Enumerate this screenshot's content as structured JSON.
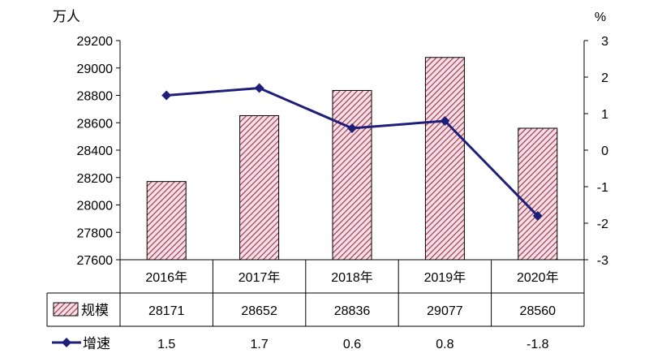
{
  "chart_data": {
    "type": "bar",
    "categories": [
      "2016年",
      "2017年",
      "2018年",
      "2019年",
      "2020年"
    ],
    "left_axis": {
      "unit": "万人",
      "ylim": [
        27600,
        29200
      ],
      "ticks": [
        27600,
        27800,
        28000,
        28200,
        28400,
        28600,
        28800,
        29000,
        29200
      ]
    },
    "right_axis": {
      "unit": "%",
      "ylim": [
        -3,
        3
      ],
      "ticks": [
        -3,
        -2,
        -1,
        0,
        1,
        2,
        3
      ]
    },
    "series": [
      {
        "name": "规模",
        "type": "bar",
        "axis": "left",
        "values": [
          28171,
          28652,
          28836,
          29077,
          28560
        ],
        "labels": [
          "28171",
          "28652",
          "28836",
          "29077",
          "28560"
        ]
      },
      {
        "name": "增速",
        "type": "line",
        "axis": "right",
        "values": [
          1.5,
          1.7,
          0.6,
          0.8,
          -1.8
        ],
        "labels": [
          "1.5",
          "1.7",
          "0.6",
          "0.8",
          "-1.8"
        ]
      }
    ],
    "colors": {
      "bar_fill": "#f5dfe4",
      "bar_hatch": "#9b2c4a",
      "line": "#1f1f7a",
      "grid": "#000000"
    },
    "grid": false,
    "legend": "data-table-below"
  }
}
